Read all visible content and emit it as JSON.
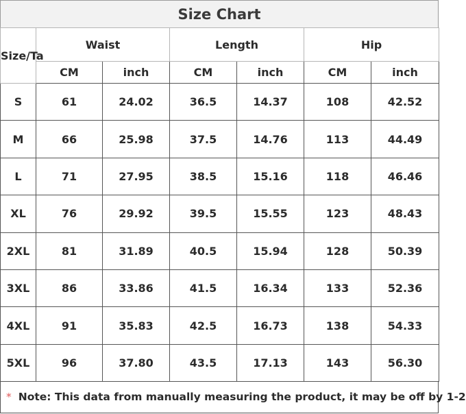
{
  "title": "Size Chart",
  "corner_label": "Size/Ta",
  "groups": [
    "Waist",
    "Length",
    "Hip"
  ],
  "units": [
    "CM",
    "inch",
    "CM",
    "inch",
    "CM",
    "inch"
  ],
  "rows": [
    {
      "size": "S",
      "values": [
        "61",
        "24.02",
        "36.5",
        "14.37",
        "108",
        "42.52"
      ]
    },
    {
      "size": "M",
      "values": [
        "66",
        "25.98",
        "37.5",
        "14.76",
        "113",
        "44.49"
      ]
    },
    {
      "size": "L",
      "values": [
        "71",
        "27.95",
        "38.5",
        "15.16",
        "118",
        "46.46"
      ]
    },
    {
      "size": "XL",
      "values": [
        "76",
        "29.92",
        "39.5",
        "15.55",
        "123",
        "48.43"
      ]
    },
    {
      "size": "2XL",
      "values": [
        "81",
        "31.89",
        "40.5",
        "15.94",
        "128",
        "50.39"
      ]
    },
    {
      "size": "3XL",
      "values": [
        "86",
        "33.86",
        "41.5",
        "16.34",
        "133",
        "52.36"
      ]
    },
    {
      "size": "4XL",
      "values": [
        "91",
        "35.83",
        "42.5",
        "16.73",
        "138",
        "54.33"
      ]
    },
    {
      "size": "5XL",
      "values": [
        "96",
        "37.80",
        "43.5",
        "17.13",
        "143",
        "56.30"
      ]
    }
  ],
  "note": {
    "marker": "*",
    "text": "Note: This data from manually measuring the product, it may be off by 1-2"
  }
}
